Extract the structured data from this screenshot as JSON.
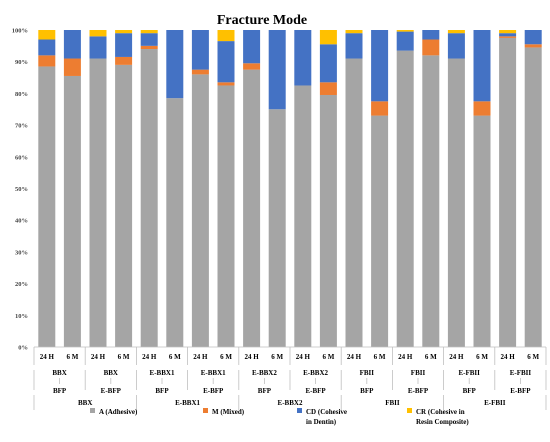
{
  "chart_data": {
    "type": "bar",
    "stacked": true,
    "percent_stacked": true,
    "title": "Fracture Mode",
    "xlabel": "",
    "ylabel": "",
    "ylim": [
      0,
      100
    ],
    "ytick_values": [
      0,
      10,
      20,
      30,
      40,
      50,
      60,
      70,
      80,
      90,
      100
    ],
    "ytick_labels": [
      "0%",
      "10%",
      "20%",
      "30%",
      "40%",
      "50%",
      "60%",
      "70%",
      "80%",
      "90%",
      "100%"
    ],
    "grid": false,
    "legend_position": "bottom",
    "categories": [
      "24 H",
      "6 M",
      "24 H",
      "6 M",
      "24 H",
      "6 M",
      "24 H",
      "6 M",
      "24 H",
      "6 M",
      "24 H",
      "6 M",
      "24 H",
      "6 M",
      "24 H",
      "6 M",
      "24 H",
      "6 M",
      "24 H",
      "6 M"
    ],
    "level2": [
      "BBX",
      "BBX",
      "E-BBX1",
      "E-BBX1",
      "E-BBX2",
      "E-BBX2",
      "FBII",
      "FBII",
      "E-FBII",
      "E-FBII"
    ],
    "level3": [
      "BFP",
      "E-BFP",
      "BFP",
      "E-BFP",
      "BFP",
      "E-BFP",
      "BFP",
      "E-BFP",
      "BFP",
      "E-BFP"
    ],
    "level4": [
      "BBX",
      "E-BBX1",
      "E-BBX2",
      "FBII",
      "E-FBII"
    ],
    "series": [
      {
        "name": "A (Adhesive)",
        "color": "#a5a5a5",
        "values": [
          88.5,
          85.5,
          91,
          89,
          94,
          78.5,
          86,
          82.5,
          87.5,
          75,
          82.5,
          79.5,
          91,
          73,
          93.5,
          92,
          91,
          73,
          97.5,
          94.5
        ]
      },
      {
        "name": "M (Mixed)",
        "color": "#ed7d31",
        "values": [
          3.5,
          5.5,
          0,
          2.5,
          1,
          0,
          1.5,
          1,
          2,
          0,
          0,
          4,
          0,
          4.5,
          0,
          5,
          0,
          4.5,
          0.5,
          1
        ]
      },
      {
        "name": "CD (Cohesive in Dentin)",
        "color": "#4472c4",
        "values": [
          5,
          9,
          7,
          7.5,
          4,
          21.5,
          12.5,
          13,
          10.5,
          25,
          17.5,
          12,
          8,
          22.5,
          6,
          3,
          8,
          22.5,
          1,
          4.5
        ]
      },
      {
        "name": "CR (Cohesive in Resin Composite)",
        "color": "#ffc000",
        "values": [
          3,
          0,
          2,
          1,
          1,
          0,
          0,
          3.5,
          0,
          0,
          0,
          4.5,
          1,
          0,
          0.5,
          0,
          1,
          0,
          1,
          0
        ]
      }
    ]
  },
  "legend": {
    "items": [
      {
        "line1": "A (Adhesive)",
        "line2": ""
      },
      {
        "line1": "M (Mixed)",
        "line2": ""
      },
      {
        "line1": "CD (Cohesive",
        "line2": "in Dentin)"
      },
      {
        "line1": "CR (Cohesive in",
        "line2": "Resin Composite)"
      }
    ]
  }
}
